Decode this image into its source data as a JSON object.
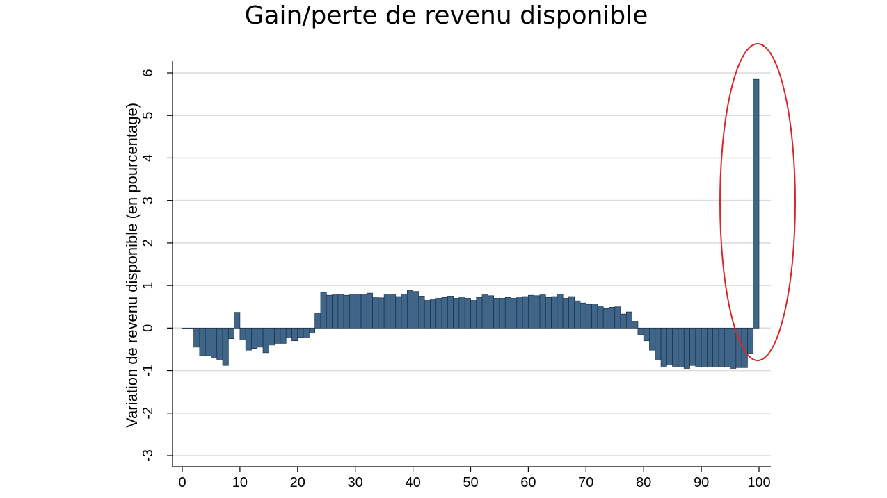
{
  "chart_data": {
    "type": "bar",
    "title": "Gain/perte de revenu disponible",
    "xlabel": "",
    "ylabel": "Variation de revenu disponible (en pourcentage)",
    "xlim": [
      0,
      100
    ],
    "ylim": [
      -3,
      6
    ],
    "xticks": [
      0,
      10,
      20,
      30,
      40,
      50,
      60,
      70,
      80,
      90,
      100
    ],
    "yticks": [
      -3,
      -2,
      -1,
      0,
      1,
      2,
      3,
      4,
      5,
      6
    ],
    "grid": true,
    "legend": "none",
    "bar_color": "#3f6589",
    "highlight": {
      "shape": "ellipse",
      "color": "#d9252a",
      "around_x": 100
    },
    "x": [
      1,
      2,
      3,
      4,
      5,
      6,
      7,
      8,
      9,
      10,
      11,
      12,
      13,
      14,
      15,
      16,
      17,
      18,
      19,
      20,
      21,
      22,
      23,
      24,
      25,
      26,
      27,
      28,
      29,
      30,
      31,
      32,
      33,
      34,
      35,
      36,
      37,
      38,
      39,
      40,
      41,
      42,
      43,
      44,
      45,
      46,
      47,
      48,
      49,
      50,
      51,
      52,
      53,
      54,
      55,
      56,
      57,
      58,
      59,
      60,
      61,
      62,
      63,
      64,
      65,
      66,
      67,
      68,
      69,
      70,
      71,
      72,
      73,
      74,
      75,
      76,
      77,
      78,
      79,
      80,
      81,
      82,
      83,
      84,
      85,
      86,
      87,
      88,
      89,
      90,
      91,
      92,
      93,
      94,
      95,
      96,
      97,
      98,
      99,
      100
    ],
    "values": [
      0.0,
      -0.01,
      -0.45,
      -0.65,
      -0.65,
      -0.7,
      -0.75,
      -0.88,
      -0.25,
      0.37,
      -0.28,
      -0.52,
      -0.48,
      -0.45,
      -0.58,
      -0.4,
      -0.36,
      -0.36,
      -0.23,
      -0.3,
      -0.22,
      -0.23,
      -0.12,
      0.34,
      0.84,
      0.77,
      0.78,
      0.8,
      0.77,
      0.78,
      0.8,
      0.8,
      0.82,
      0.73,
      0.71,
      0.78,
      0.78,
      0.74,
      0.8,
      0.88,
      0.86,
      0.75,
      0.65,
      0.68,
      0.7,
      0.72,
      0.75,
      0.7,
      0.73,
      0.7,
      0.65,
      0.72,
      0.78,
      0.76,
      0.7,
      0.7,
      0.72,
      0.7,
      0.73,
      0.74,
      0.77,
      0.76,
      0.78,
      0.72,
      0.74,
      0.8,
      0.7,
      0.74,
      0.64,
      0.59,
      0.56,
      0.57,
      0.52,
      0.46,
      0.49,
      0.5,
      0.33,
      0.38,
      0.16,
      -0.15,
      -0.3,
      -0.52,
      -0.75,
      -0.9,
      -0.87,
      -0.92,
      -0.9,
      -0.95,
      -0.88,
      -0.92,
      -0.9,
      -0.9,
      -0.9,
      -0.92,
      -0.9,
      -0.95,
      -0.93,
      -0.93,
      -0.6,
      5.85
    ]
  }
}
